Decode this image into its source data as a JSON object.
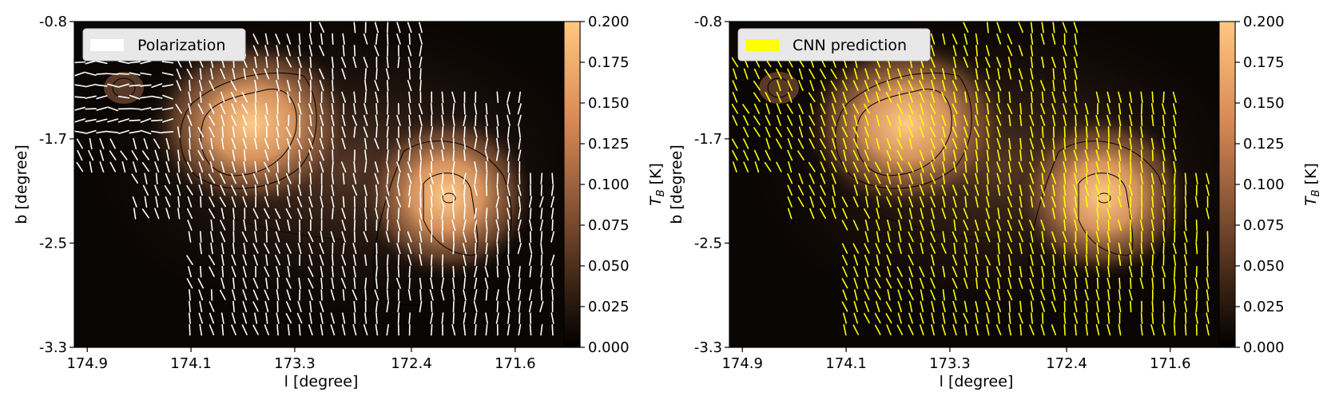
{
  "figure": {
    "panels": [
      {
        "legend_label": "Polarization",
        "legend_color": "#ffffff",
        "vector_color": "#ffffff",
        "xlabel": "l [degree]",
        "ylabel": "b [degree]"
      },
      {
        "legend_label": "CNN prediction",
        "legend_color": "#ffff00",
        "vector_color": "#ffff00",
        "xlabel": "l [degree]",
        "ylabel": "b [degree]"
      }
    ]
  },
  "chart_data": [
    {
      "type": "heatmap",
      "title": "",
      "overlay": "polarization vectors + intensity contours",
      "legend": [
        "Polarization"
      ],
      "legend_position": "top-left",
      "xlabel": "l [degree]",
      "ylabel": "b [degree]",
      "xlim": [
        175.0,
        171.1
      ],
      "ylim": [
        -3.3,
        -0.8
      ],
      "x_ticks": [
        174.9,
        174.1,
        173.3,
        172.4,
        171.6
      ],
      "x_tick_labels": [
        "174.9",
        "174.1",
        "173.3",
        "172.4",
        "171.6"
      ],
      "y_ticks": [
        -0.8,
        -1.7,
        -2.5,
        -3.3
      ],
      "y_tick_labels": [
        "-0.8",
        "-1.7",
        "-2.5",
        "-3.3"
      ],
      "colorbar": {
        "label": "T_B [K]",
        "range": [
          0.0,
          0.2
        ],
        "ticks": [
          "0.000",
          "0.025",
          "0.050",
          "0.075",
          "0.100",
          "0.125",
          "0.150",
          "0.175",
          "0.200"
        ]
      },
      "sources": [
        {
          "l": 173.75,
          "b": -1.55,
          "peak_TB": 0.18
        },
        {
          "l": 172.0,
          "b": -2.2,
          "peak_TB": 0.2
        },
        {
          "l": 174.55,
          "b": -1.3,
          "peak_TB": 0.03
        }
      ]
    },
    {
      "type": "heatmap",
      "title": "",
      "overlay": "CNN-predicted field vectors + intensity contours",
      "legend": [
        "CNN prediction"
      ],
      "legend_position": "top-left",
      "xlabel": "l [degree]",
      "ylabel": "b [degree]",
      "xlim": [
        175.0,
        171.1
      ],
      "ylim": [
        -3.3,
        -0.8
      ],
      "x_ticks": [
        174.9,
        174.1,
        173.3,
        172.4,
        171.6
      ],
      "x_tick_labels": [
        "174.9",
        "174.1",
        "173.3",
        "172.4",
        "171.6"
      ],
      "y_ticks": [
        -0.8,
        -1.7,
        -2.5,
        -3.3
      ],
      "y_tick_labels": [
        "-0.8",
        "-1.7",
        "-2.5",
        "-3.3"
      ],
      "colorbar": {
        "label": "T_B [K]",
        "range": [
          0.0,
          0.2
        ],
        "ticks": [
          "0.000",
          "0.025",
          "0.050",
          "0.075",
          "0.100",
          "0.125",
          "0.150",
          "0.175",
          "0.200"
        ]
      },
      "sources": [
        {
          "l": 173.75,
          "b": -1.55,
          "peak_TB": 0.18
        },
        {
          "l": 172.0,
          "b": -2.2,
          "peak_TB": 0.2
        },
        {
          "l": 174.55,
          "b": -1.3,
          "peak_TB": 0.03
        }
      ]
    }
  ]
}
